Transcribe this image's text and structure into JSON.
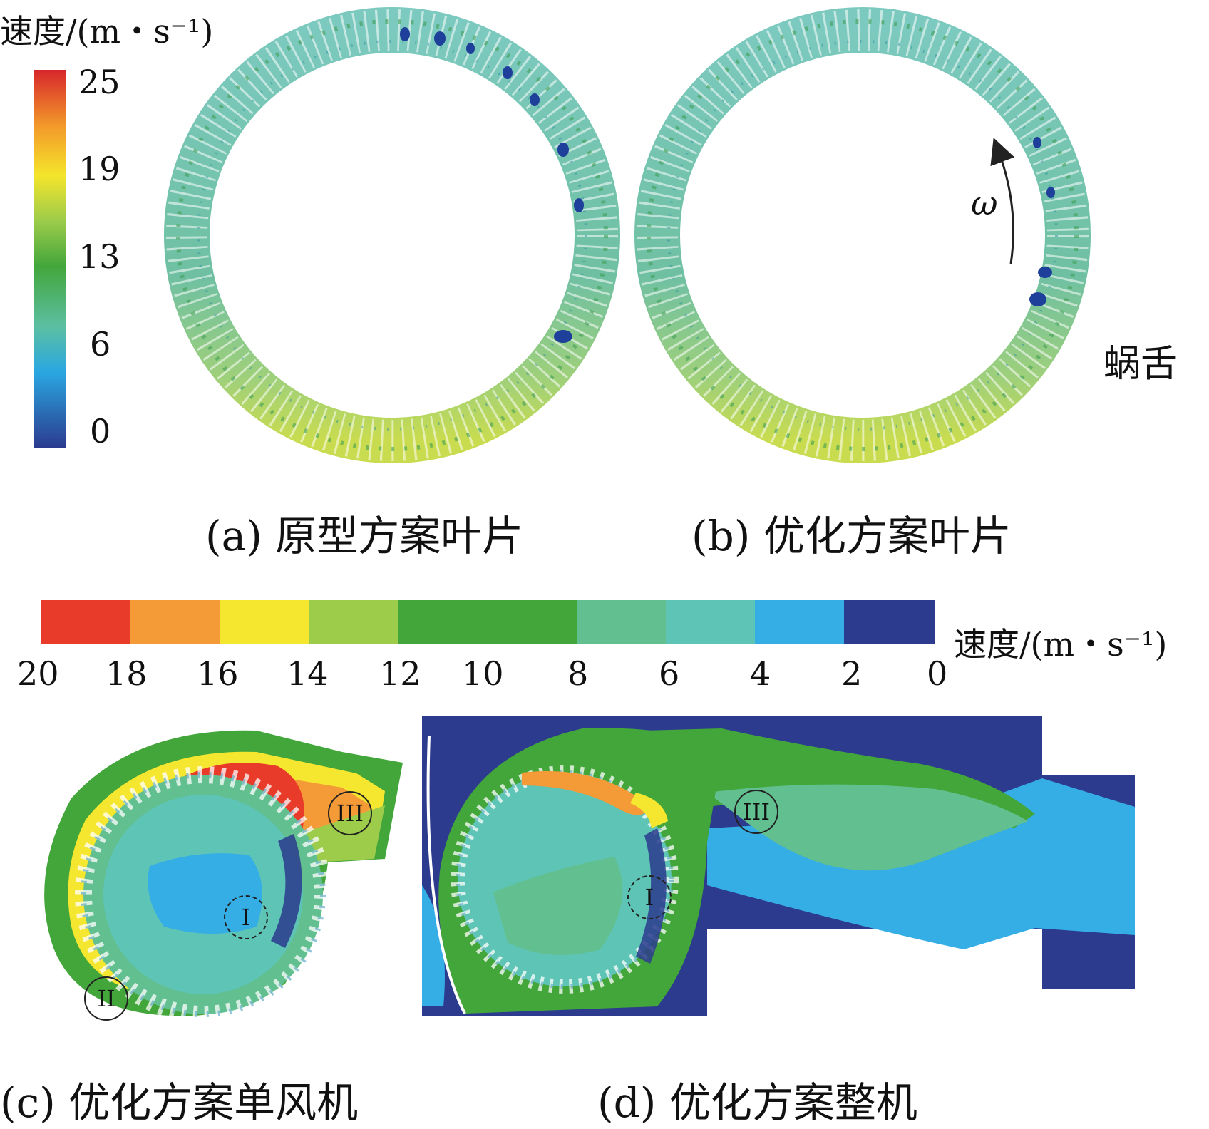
{
  "top_legend": {
    "title": "速度/(m・s⁻¹)",
    "ticks": [
      "25",
      "19",
      "13",
      "6",
      "0"
    ],
    "colors": [
      "#d7262b",
      "#f39a2a",
      "#f4e52b",
      "#43a63b",
      "#5cbfa3",
      "#2aa7e1",
      "#2b3b8f"
    ]
  },
  "panels": {
    "a_caption": "(a) 原型方案叶片",
    "b_caption": "(b) 优化方案叶片",
    "c_caption": "(c) 优化方案单风机",
    "d_caption": "(d) 优化方案整机",
    "omega": "ω",
    "volute_tongue": "蜗舌"
  },
  "bottom_legend": {
    "title": "速度/(m・s⁻¹)",
    "ticks": [
      "20",
      "18",
      "16",
      "14",
      "12",
      "10",
      "8",
      "6",
      "4",
      "2",
      "0"
    ],
    "colors": [
      "#e83b2a",
      "#f49a37",
      "#f5e62f",
      "#9ccc4a",
      "#43a63b",
      "#4cae45",
      "#62bf8f",
      "#5ec4b5",
      "#35aee6",
      "#2c3b8d"
    ]
  },
  "markers": {
    "c": [
      "III",
      "I",
      "II"
    ],
    "d": [
      "III",
      "I"
    ]
  }
}
